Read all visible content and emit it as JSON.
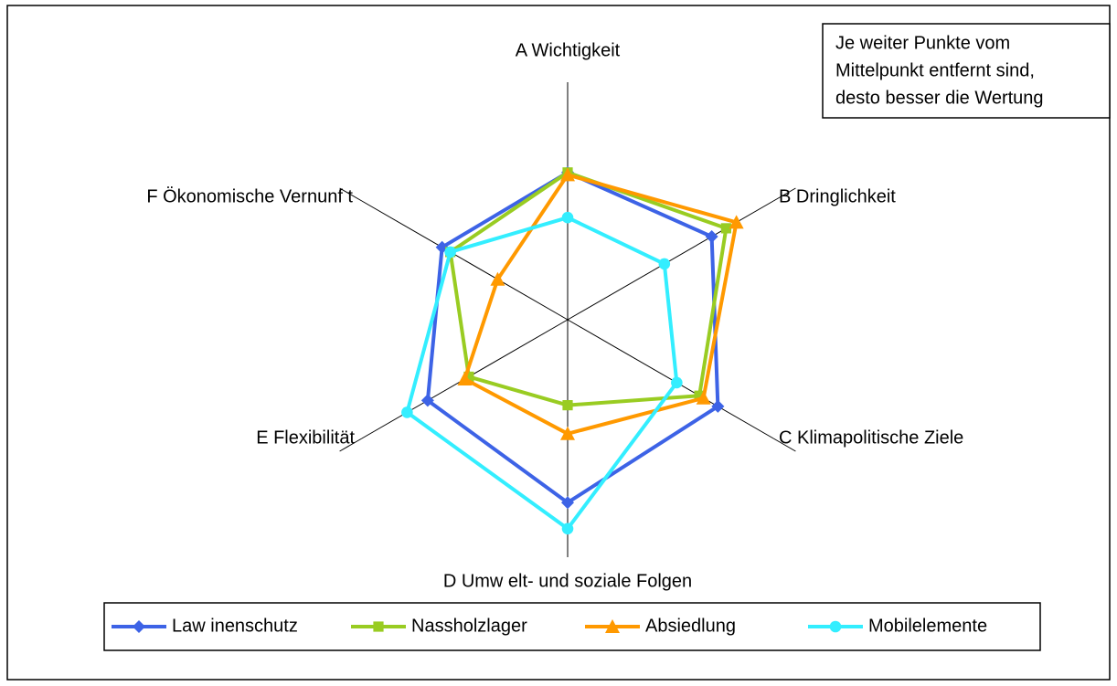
{
  "chart_data": {
    "type": "radar",
    "categories": [
      "A Wichtigkeit",
      "B Dringlichkeit",
      "C Klimapolitische Ziele",
      "D Umw elt- und soziale Folgen",
      "E Flexibilität",
      "F Ökonomische Vernunf t"
    ],
    "rlim": [
      0,
      10
    ],
    "annotation": [
      "Je weiter Punkte vom",
      "Mittelpunkt entfernt sind,",
      "desto besser die Wertung"
    ],
    "legend": "bottom",
    "series": [
      {
        "name": "Law inenschutz",
        "color": "#3d63e6",
        "marker": "diamond",
        "values": [
          6.2,
          7.0,
          7.3,
          7.7,
          6.8,
          6.1
        ]
      },
      {
        "name": "Nassholzlager",
        "color": "#99cc22",
        "marker": "square",
        "values": [
          6.2,
          7.7,
          6.4,
          3.6,
          4.8,
          5.7
        ]
      },
      {
        "name": "Absiedlung",
        "color": "#ff9900",
        "marker": "triangle",
        "values": [
          6.1,
          8.2,
          6.6,
          4.8,
          5.0,
          3.4
        ]
      },
      {
        "name": "Mobilelemente",
        "color": "#33eeff",
        "marker": "circle",
        "values": [
          4.3,
          4.7,
          5.3,
          8.8,
          7.8,
          5.7
        ]
      }
    ]
  }
}
